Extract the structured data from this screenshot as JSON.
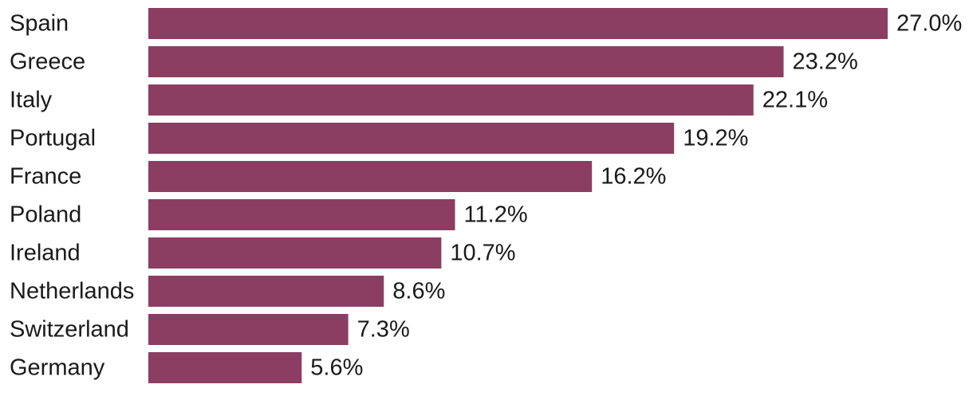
{
  "chart_data": {
    "type": "bar",
    "orientation": "horizontal",
    "title": "",
    "xlabel": "",
    "ylabel": "",
    "categories": [
      "Spain",
      "Greece",
      "Italy",
      "Portugal",
      "France",
      "Poland",
      "Ireland",
      "Netherlands",
      "Switzerland",
      "Germany"
    ],
    "values": [
      27.0,
      23.2,
      22.1,
      19.2,
      16.2,
      11.2,
      10.7,
      8.6,
      7.3,
      5.6
    ],
    "value_labels": [
      "27.0%",
      "23.2%",
      "22.1%",
      "19.2%",
      "16.2%",
      "11.2%",
      "10.7%",
      "8.6%",
      "7.3%",
      "5.6%"
    ],
    "xlim": [
      0,
      27.0
    ],
    "grid": false,
    "legend": "none",
    "bar_color": "#8b3d62"
  }
}
